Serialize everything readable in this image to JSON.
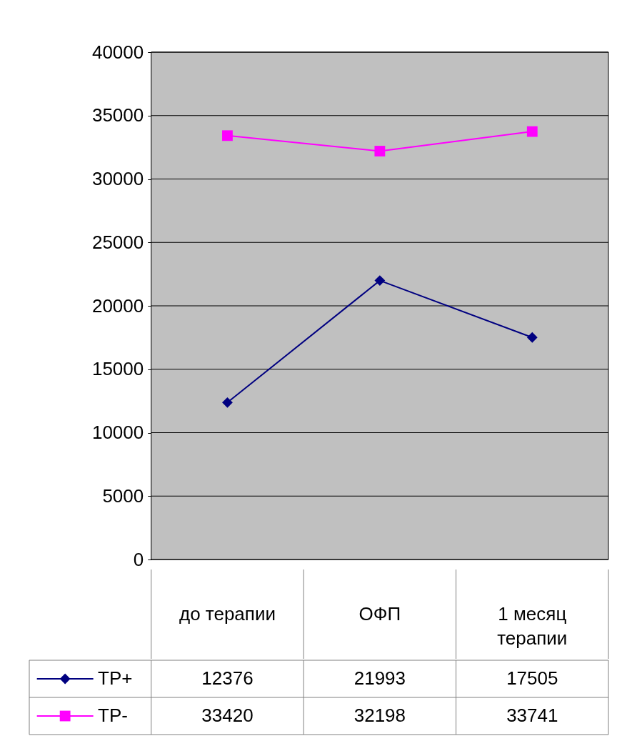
{
  "chart_data": {
    "type": "line",
    "categories": [
      "до терапии",
      "ОФП",
      "1 месяц терапии"
    ],
    "series": [
      {
        "name": "TP+",
        "color": "#000080",
        "marker": "diamond",
        "values": [
          12376,
          21993,
          17505
        ]
      },
      {
        "name": "TP-",
        "color": "#ff00ff",
        "marker": "square",
        "values": [
          33420,
          32198,
          33741
        ]
      }
    ],
    "ylim": [
      0,
      40000
    ],
    "yticks": [
      0,
      5000,
      10000,
      15000,
      20000,
      25000,
      30000,
      35000,
      40000
    ],
    "grid": "y",
    "legend": "bottom",
    "data_labels": true,
    "line_style": "solid"
  }
}
